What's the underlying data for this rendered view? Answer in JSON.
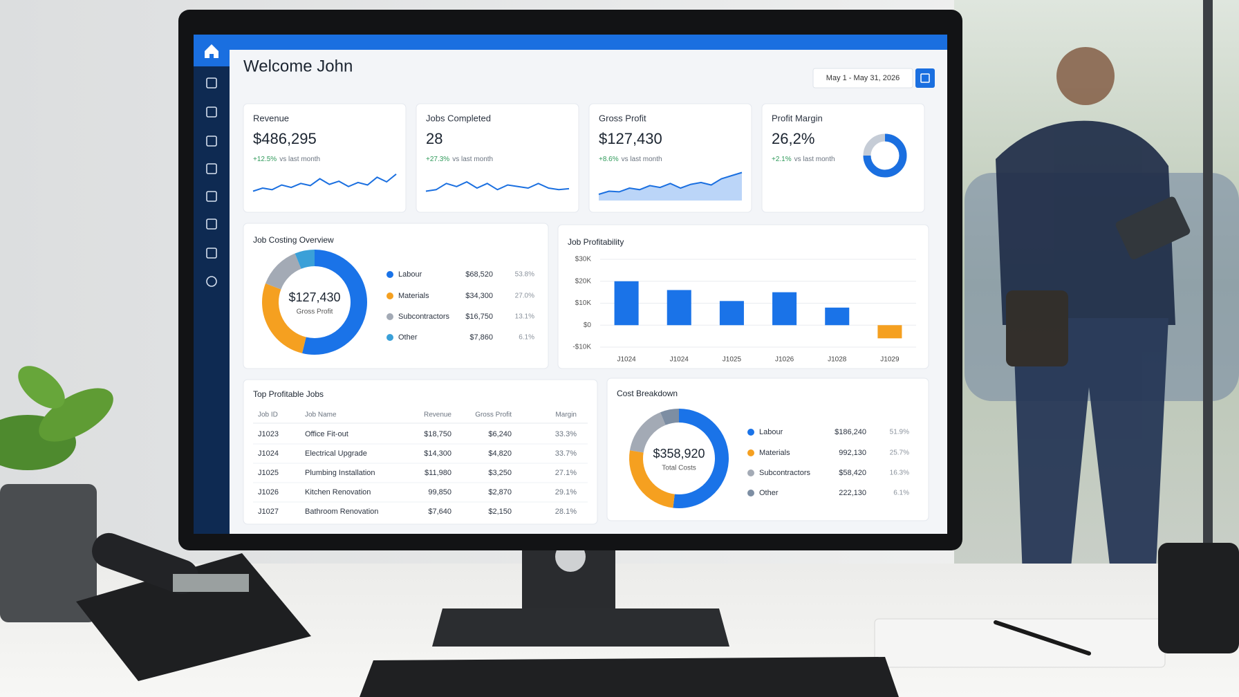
{
  "header": {
    "title": "Welcome John",
    "date_range": "May 1 - May 31, 2026"
  },
  "kpis": [
    {
      "label": "Revenue",
      "value": "$486,295",
      "change": "+12.5%",
      "change_note": "vs last month",
      "trend": [
        30,
        40,
        35,
        50,
        42,
        55,
        48,
        70,
        52,
        62,
        45,
        58,
        50,
        75,
        60,
        85
      ]
    },
    {
      "label": "Jobs Completed",
      "value": "28",
      "change": "+27.3%",
      "change_note": "vs last month",
      "trend": [
        30,
        35,
        55,
        45,
        60,
        40,
        55,
        35,
        50,
        45,
        40,
        55,
        40,
        35,
        38
      ]
    },
    {
      "label": "Gross Profit",
      "value": "$127,430",
      "change": "+8.6%",
      "change_note": "vs last month",
      "trend": [
        20,
        30,
        28,
        40,
        35,
        48,
        42,
        55,
        40,
        52,
        58,
        50,
        70,
        80,
        90
      ],
      "area": true
    },
    {
      "label": "Profit Margin",
      "value": "26,2%",
      "change": "+2.1%",
      "change_note": "vs last month"
    }
  ],
  "job_costing": {
    "title": "Job Costing Overview",
    "center_value": "$127,430",
    "center_label": "Gross Profit",
    "items": [
      {
        "name": "Labour",
        "amount": "$68,520",
        "share": 53.8,
        "share_label": "53.8%",
        "color": "#1a73e8"
      },
      {
        "name": "Materials",
        "amount": "$34,300",
        "share": 27.0,
        "share_label": "27.0%",
        "color": "#f5a020"
      },
      {
        "name": "Subcontractors",
        "amount": "$16,750",
        "share": 13.1,
        "share_label": "13.1%",
        "color": "#a3aab5"
      },
      {
        "name": "Other",
        "amount": "$7,860",
        "share": 6.1,
        "share_label": "6.1%",
        "color": "#3aa0d8"
      }
    ]
  },
  "job_profitability": {
    "type": "bar",
    "title": "Job Profitability",
    "categories": [
      "J1024",
      "J1024",
      "J1025",
      "J1026",
      "J1028",
      "J1029"
    ],
    "values": [
      20000,
      16000,
      11000,
      15000,
      8000,
      -6000
    ],
    "color": "#1a73e8",
    "negative_color": "#f5a020",
    "ylim": [
      -10000,
      30000
    ],
    "yticks": [
      {
        "value": -10000,
        "label": "-$10K"
      },
      {
        "value": 0,
        "label": "$0"
      },
      {
        "value": 10000,
        "label": "$10K"
      },
      {
        "value": 20000,
        "label": "$20K"
      },
      {
        "value": 30000,
        "label": "$30K"
      }
    ],
    "grid": true
  },
  "top_jobs": {
    "title": "Top Profitable Jobs",
    "columns": [
      "Job ID",
      "Job Name",
      "Revenue",
      "Gross Profit",
      "Margin"
    ],
    "rows": [
      [
        "J1023",
        "Office Fit-out",
        "$18,750",
        "$6,240",
        "33.3%"
      ],
      [
        "J1024",
        "Electrical Upgrade",
        "$14,300",
        "$4,820",
        "33.7%"
      ],
      [
        "J1025",
        "Plumbing Installation",
        "$11,980",
        "$3,250",
        "27.1%"
      ],
      [
        "J1026",
        "Kitchen Renovation",
        "99,850",
        "$2,870",
        "29.1%"
      ],
      [
        "J1027",
        "Bathroom Renovation",
        "$7,640",
        "$2,150",
        "28.1%"
      ]
    ]
  },
  "cost_breakdown": {
    "title": "Cost Breakdown",
    "center_value": "$358,920",
    "center_label": "Total Costs",
    "items": [
      {
        "name": "Labour",
        "amount": "$186,240",
        "share": 51.9,
        "share_label": "51.9%",
        "color": "#1a73e8"
      },
      {
        "name": "Materials",
        "amount": "992,130",
        "share": 25.7,
        "share_label": "25.7%",
        "color": "#f5a020"
      },
      {
        "name": "Subcontractors",
        "amount": "$58,420",
        "share": 16.3,
        "share_label": "16.3%",
        "color": "#a3aab5"
      },
      {
        "name": "Other",
        "amount": "222,130",
        "share": 6.1,
        "share_label": "6.1%",
        "color": "#7d8ea3"
      }
    ]
  }
}
